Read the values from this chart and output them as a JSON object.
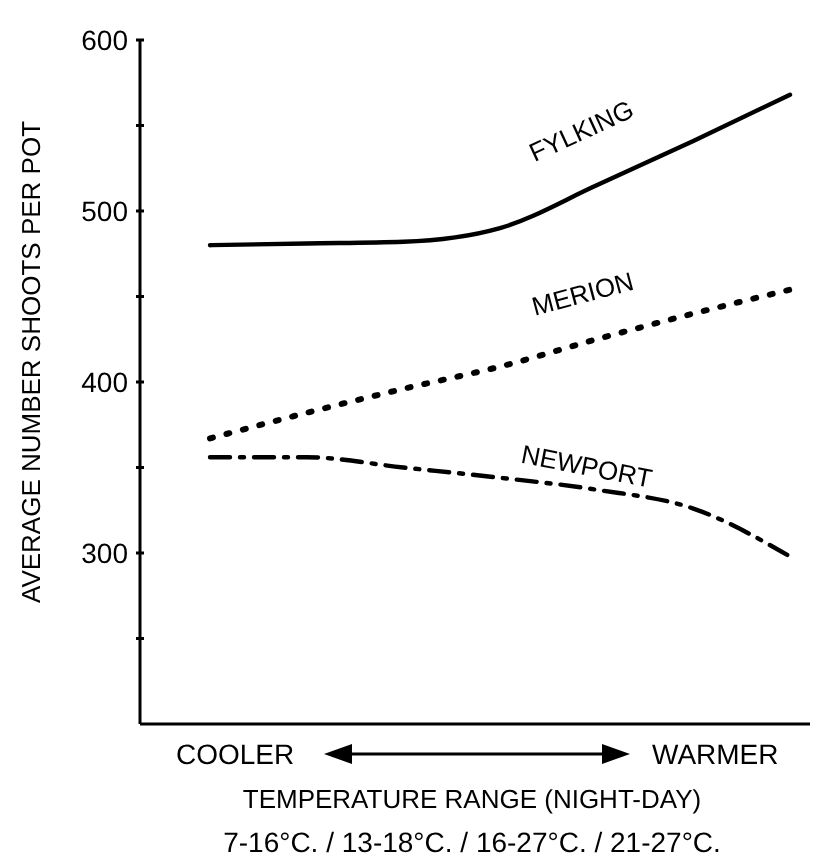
{
  "chart_data": {
    "type": "line",
    "ylabel": "AVERAGE NUMBER SHOOTS PER POT",
    "xlabel": "TEMPERATURE RANGE (NIGHT-DAY)",
    "categories": [
      null,
      null,
      null,
      null,
      null,
      null,
      null
    ],
    "ylim": [
      200,
      600
    ],
    "yticks": [
      {
        "value": 250,
        "label": null
      },
      300,
      {
        "value": 350,
        "label": null
      },
      400,
      {
        "value": 450,
        "label": null
      },
      500,
      {
        "value": 550,
        "label": null
      },
      600
    ],
    "grid": false,
    "marker": "none",
    "series": [
      {
        "name": "FYLKING",
        "color": "#000000",
        "line_style": "solid",
        "values": [
          480,
          481,
          482,
          490,
          515,
          541,
          568
        ]
      },
      {
        "name": "MERION",
        "color": "#000000",
        "line_style": "dotted",
        "values": [
          367,
          382,
          396,
          409,
          425,
          440,
          454
        ]
      },
      {
        "name": "NEWPORT",
        "color": "#000000",
        "line_style": "dashed",
        "values": [
          356,
          356,
          350,
          344,
          337,
          326,
          298
        ]
      }
    ],
    "annotations": [
      "COOLER",
      "WARMER",
      "7-16°C. / 13-18°C. / 16-27°C. / 21-27°C."
    ]
  }
}
